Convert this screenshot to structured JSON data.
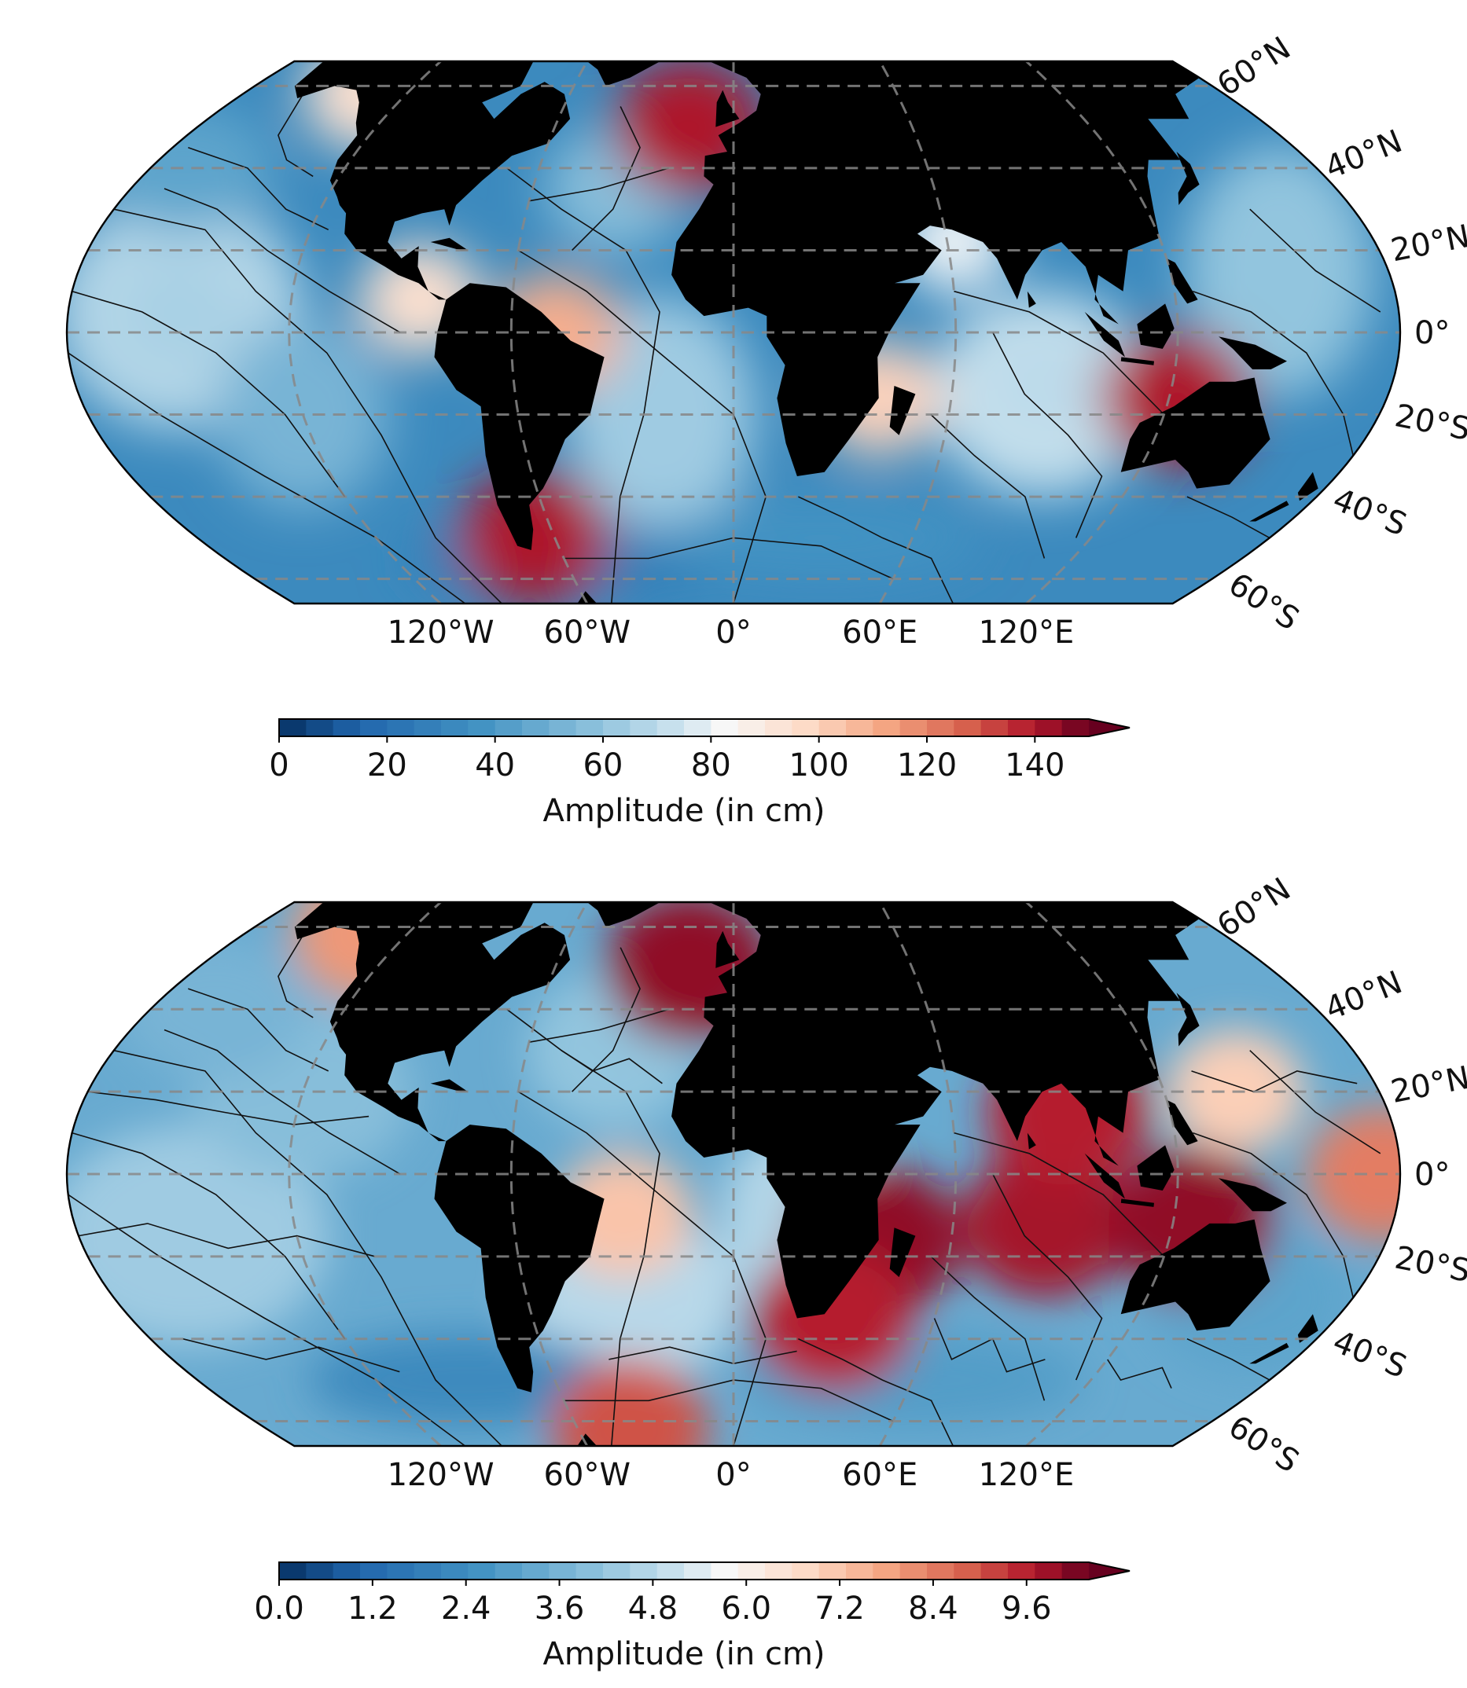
{
  "maps": [
    {
      "id": "top",
      "lon_labels": [
        "120°W",
        "60°W",
        "0°",
        "60°E",
        "120°E"
      ],
      "lat_labels": [
        "60°N",
        "40°N",
        "20°N",
        "0°",
        "20°S",
        "40°S",
        "60°S"
      ],
      "colorbar": {
        "ticks": [
          "0",
          "20",
          "40",
          "60",
          "80",
          "100",
          "120",
          "140"
        ],
        "label": "Amplitude (in cm)",
        "range": [
          0,
          150
        ],
        "extend": "max"
      },
      "hotspots": [
        {
          "region": "north-atlantic-east",
          "lon": -15,
          "lat": 50,
          "value": 140
        },
        {
          "region": "gulf-of-alaska",
          "lon": -135,
          "lat": 58,
          "value": 95
        },
        {
          "region": "central-america-pacific",
          "lon": -85,
          "lat": 8,
          "value": 95
        },
        {
          "region": "brazil-north",
          "lon": -48,
          "lat": 0,
          "value": 110
        },
        {
          "region": "mozambique-channel",
          "lon": 40,
          "lat": -16,
          "value": 100
        },
        {
          "region": "arabian-sea-north",
          "lon": 62,
          "lat": 22,
          "value": 80
        },
        {
          "region": "northwest-australia",
          "lon": 122,
          "lat": -16,
          "value": 140
        },
        {
          "region": "patagonia",
          "lon": -67,
          "lat": -50,
          "value": 140
        },
        {
          "region": "indian-ocean-amphidrome",
          "lon": 85,
          "lat": -12,
          "value": 70
        },
        {
          "region": "pacific-central",
          "lon": -150,
          "lat": 5,
          "value": 65
        }
      ]
    },
    {
      "id": "bottom",
      "lon_labels": [
        "120°W",
        "60°W",
        "0°",
        "60°E",
        "120°E"
      ],
      "lat_labels": [
        "60°N",
        "40°N",
        "20°N",
        "0°",
        "20°S",
        "40°S",
        "60°S"
      ],
      "colorbar": {
        "ticks": [
          "0.0",
          "1.2",
          "2.4",
          "3.6",
          "4.8",
          "6.0",
          "7.2",
          "8.4",
          "9.6"
        ],
        "label": "Amplitude (in cm)",
        "range": [
          0,
          10.4
        ],
        "extend": "max"
      },
      "hotspots": [
        {
          "region": "indian-ocean-central",
          "lon": 85,
          "lat": -12,
          "value": 9.8
        },
        {
          "region": "west-pacific-equator",
          "lon": 175,
          "lat": 0,
          "value": 8.4
        },
        {
          "region": "mozambique-channel",
          "lon": 40,
          "lat": -16,
          "value": 10.0
        },
        {
          "region": "south-africa",
          "lon": 30,
          "lat": -35,
          "value": 9.6
        },
        {
          "region": "north-atlantic-east",
          "lon": -15,
          "lat": 50,
          "value": 10.0
        },
        {
          "region": "gulf-of-alaska",
          "lon": -135,
          "lat": 58,
          "value": 8.0
        },
        {
          "region": "south-atlantic-ridge",
          "lon": -30,
          "lat": -10,
          "value": 7.2
        },
        {
          "region": "bay-of-bengal",
          "lon": 92,
          "lat": 15,
          "value": 9.6
        },
        {
          "region": "timor-sea",
          "lon": 125,
          "lat": -12,
          "value": 10.0
        },
        {
          "region": "philippine-sea",
          "lon": 140,
          "lat": 20,
          "value": 7.0
        },
        {
          "region": "weddell-sea",
          "lon": -40,
          "lat": -62,
          "value": 9.0
        }
      ]
    }
  ]
}
